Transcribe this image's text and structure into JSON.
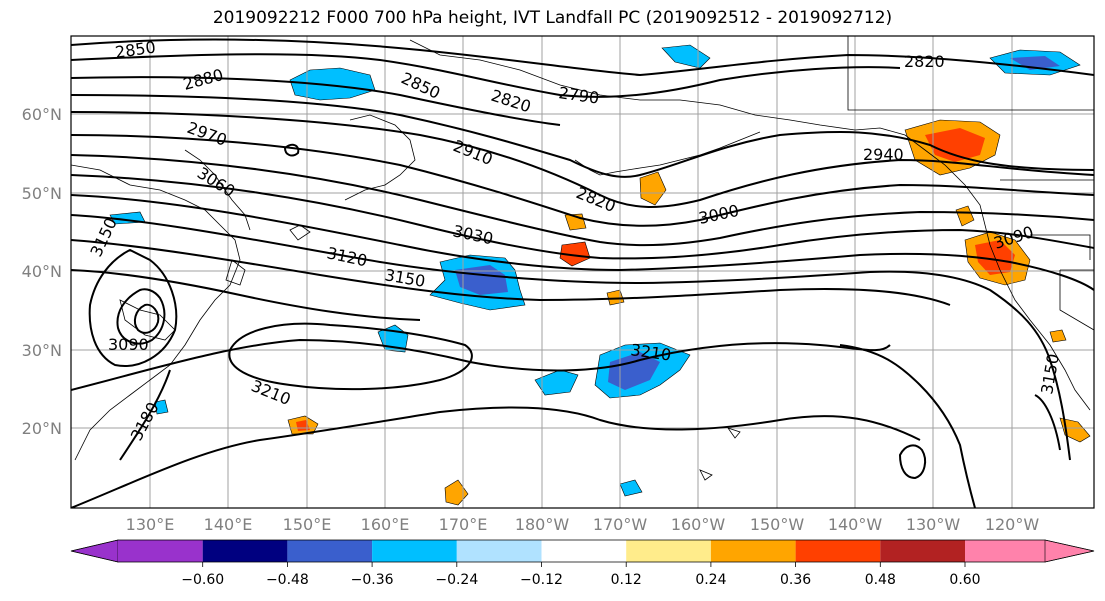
{
  "title": "2019092212 F000 700 hPa height, IVT Landfall PC (2019092512 - 2019092712)",
  "map": {
    "lon_labels": [
      "130°E",
      "140°E",
      "150°E",
      "160°E",
      "170°E",
      "180°W",
      "170°W",
      "160°W",
      "150°W",
      "140°W",
      "130°W",
      "120°W"
    ],
    "lat_labels": [
      "60°N",
      "50°N",
      "40°N",
      "30°N",
      "20°N"
    ],
    "contour_labels": [
      "2850",
      "2880",
      "2850",
      "2820",
      "2790",
      "2820",
      "2970",
      "2910",
      "2940",
      "3060",
      "2820",
      "3150",
      "3030",
      "3000",
      "3090",
      "3120",
      "3150",
      "3090",
      "3210",
      "3210",
      "3180",
      "3150"
    ],
    "colors": {
      "ocean_grid": "#a0a0a0",
      "contour": "#000000",
      "tick_label": "#808080"
    }
  },
  "colorbar": {
    "ticks": [
      "−0.60",
      "−0.48",
      "−0.36",
      "−0.24",
      "−0.12",
      "0.12",
      "0.24",
      "0.36",
      "0.48",
      "0.60"
    ],
    "colors": [
      "#9932cc",
      "#000080",
      "#3a5fcd",
      "#00bfff",
      "#b0e2ff",
      "#ffffff",
      "#ffec8b",
      "#ffa500",
      "#ff4000",
      "#b22222",
      "#ff82ab"
    ]
  }
}
